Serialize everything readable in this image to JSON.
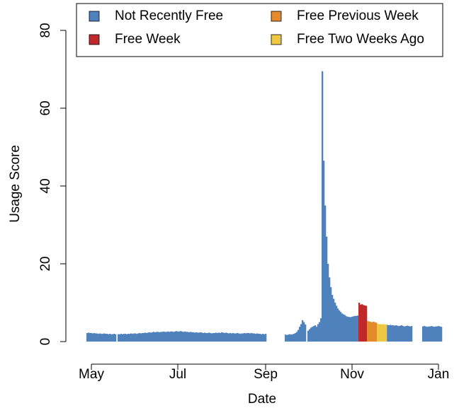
{
  "chart_data": {
    "type": "bar",
    "xlabel": "Date",
    "ylabel": "Usage Score",
    "xlim": [
      -18,
      255.5
    ],
    "ylim": [
      -5.8,
      86.9
    ],
    "xticks": [
      {
        "value": 0,
        "label": "May"
      },
      {
        "value": 61,
        "label": "Jul"
      },
      {
        "value": 123,
        "label": "Sep"
      },
      {
        "value": 184,
        "label": "Nov"
      },
      {
        "value": 245,
        "label": "Jan"
      }
    ],
    "yticks": [
      0,
      20,
      40,
      60,
      80
    ],
    "legend": "top",
    "series": [
      {
        "name": "Not Recently Free",
        "color": "#4f81bd",
        "x": [
          -3,
          -2,
          -1,
          0,
          1,
          2,
          3,
          4,
          5,
          6,
          7,
          8,
          9,
          10,
          11,
          12,
          13,
          14,
          15,
          16,
          17,
          18,
          19,
          20,
          21,
          22,
          23,
          24,
          25,
          26,
          27,
          28,
          29,
          30,
          31,
          32,
          33,
          34,
          35,
          36,
          37,
          38,
          39,
          40,
          41,
          42,
          43,
          44,
          45,
          46,
          47,
          48,
          49,
          50,
          51,
          52,
          53,
          54,
          55,
          56,
          57,
          58,
          59,
          60,
          61,
          62,
          63,
          64,
          65,
          66,
          67,
          68,
          69,
          70,
          71,
          72,
          73,
          74,
          75,
          76,
          77,
          78,
          79,
          80,
          81,
          82,
          83,
          84,
          85,
          86,
          87,
          88,
          89,
          90,
          91,
          92,
          93,
          94,
          95,
          96,
          97,
          98,
          99,
          100,
          101,
          102,
          103,
          104,
          105,
          106,
          107,
          108,
          109,
          110,
          111,
          112,
          113,
          114,
          115,
          116,
          117,
          118,
          119,
          120,
          121,
          122,
          123,
          124,
          125,
          126,
          127,
          128,
          129,
          130,
          131,
          132,
          133,
          134,
          135,
          136,
          137,
          138,
          139,
          140,
          141,
          142,
          143,
          144,
          145,
          146,
          147,
          148,
          149,
          150,
          151,
          152,
          153,
          154,
          155,
          156,
          157,
          158,
          159,
          160,
          161,
          162,
          163,
          164,
          165,
          166,
          167,
          168,
          169,
          170,
          171,
          172,
          173,
          174,
          175,
          176,
          177,
          178,
          179,
          180,
          181,
          182,
          183,
          184,
          185,
          186,
          187,
          188,
          189,
          190,
          191,
          192,
          193,
          194,
          195,
          196,
          197,
          198,
          199,
          200,
          201,
          202,
          203,
          204,
          205,
          206,
          207,
          208,
          209,
          210,
          211,
          212,
          213,
          214,
          215,
          216,
          217,
          218,
          219,
          220,
          221,
          222,
          223,
          224,
          225,
          226,
          227,
          228,
          229,
          230,
          231,
          232,
          233,
          234,
          235,
          236,
          237,
          238,
          239,
          240,
          241,
          242,
          243,
          244,
          245,
          246,
          247
        ],
        "values": [
          2.2,
          2.3,
          2.2,
          2.2,
          2.1,
          2.2,
          2.1,
          2.1,
          2.0,
          2.1,
          2.0,
          2.0,
          2.1,
          2.0,
          2.0,
          1.9,
          2.0,
          1.9,
          1.9,
          2.0,
          1.9,
          null,
          1.9,
          1.9,
          2.0,
          1.9,
          2.0,
          2.0,
          1.9,
          2.0,
          2.0,
          2.1,
          2.0,
          2.1,
          2.1,
          2.0,
          2.1,
          2.2,
          2.1,
          2.2,
          2.2,
          2.3,
          2.2,
          2.3,
          2.4,
          2.3,
          2.4,
          2.5,
          2.4,
          2.5,
          2.5,
          2.4,
          2.5,
          2.5,
          2.6,
          2.5,
          2.5,
          2.6,
          2.5,
          2.6,
          2.6,
          2.5,
          2.6,
          2.7,
          2.6,
          2.6,
          2.7,
          2.6,
          2.5,
          2.6,
          2.5,
          2.5,
          2.4,
          2.5,
          2.4,
          2.4,
          2.3,
          2.4,
          2.3,
          2.3,
          2.4,
          2.3,
          2.2,
          2.3,
          2.2,
          2.2,
          2.3,
          2.2,
          2.1,
          2.2,
          2.2,
          2.3,
          2.2,
          2.3,
          2.2,
          2.4,
          2.3,
          2.2,
          2.3,
          2.2,
          2.1,
          2.2,
          2.1,
          2.2,
          2.1,
          2.1,
          2.2,
          2.1,
          2.0,
          2.1,
          2.1,
          2.2,
          2.1,
          2.2,
          2.2,
          2.1,
          2.2,
          2.1,
          2.1,
          2.0,
          2.1,
          2.0,
          2.0,
          1.9,
          2.0,
          1.9,
          2.0,
          null,
          null,
          null,
          null,
          null,
          null,
          null,
          null,
          null,
          null,
          null,
          null,
          null,
          1.8,
          1.7,
          1.8,
          1.9,
          1.8,
          1.9,
          2.0,
          2.2,
          2.5,
          3.0,
          3.8,
          4.5,
          5.5,
          5.0,
          4.4,
          null,
          2.8,
          3.2,
          3.6,
          3.8,
          4.0,
          4.2,
          3.8,
          4.5,
          5.0,
          6.0,
          69.5,
          46.5,
          35,
          27,
          20,
          16.5,
          14,
          12,
          11,
          10,
          9.2,
          8.5,
          8,
          7.6,
          7.2,
          7,
          6.8,
          6.5,
          6.4,
          6.3,
          6.3,
          6.4,
          6.5,
          6.6,
          6.6,
          6.7,
          null,
          null,
          null,
          null,
          null,
          null,
          null,
          null,
          null,
          null,
          null,
          null,
          null,
          null,
          null,
          null,
          null,
          null,
          null,
          null,
          4.3,
          4.2,
          4.3,
          4.2,
          4.2,
          4.1,
          4.2,
          4.1,
          4.0,
          4.1,
          4.2,
          4.0,
          3.9,
          4.0,
          4.1,
          4.0,
          3.9,
          4.0,
          null,
          null,
          null,
          null,
          null,
          null,
          null,
          3.9,
          4.0,
          3.9,
          3.8,
          3.9,
          3.9,
          4.0,
          3.9,
          3.8,
          3.9,
          3.9,
          4.0,
          3.9,
          3.8
        ]
      },
      {
        "name": "Free Week",
        "color": "#c0282a",
        "x": [
          189,
          190,
          191,
          192,
          193,
          194
        ],
        "values": [
          10,
          9.5,
          9.6,
          9.4,
          9.3,
          9.2
        ]
      },
      {
        "name": "Free Previous Week",
        "color": "#e58a2c",
        "x": [
          195,
          196,
          197,
          198,
          199,
          200,
          201
        ],
        "values": [
          5.3,
          5.2,
          5.1,
          5.0,
          5.1,
          5.0,
          4.9
        ]
      },
      {
        "name": "Free Two Weeks Ago",
        "color": "#eec843",
        "x": [
          202,
          203,
          204,
          205,
          206,
          207,
          208
        ],
        "values": [
          4.6,
          4.5,
          4.5,
          4.4,
          4.5,
          4.4,
          4.4
        ]
      }
    ]
  }
}
